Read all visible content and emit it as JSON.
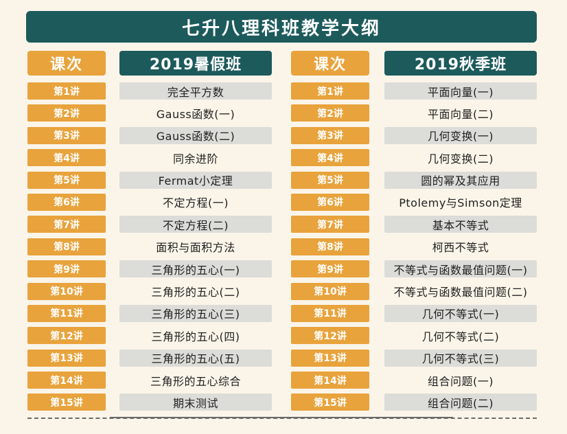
{
  "title": "七升八理科班教学大纲",
  "headers": {
    "lesson_left": "课次",
    "summer": "2019暑假班",
    "lesson_right": "课次",
    "autumn": "2019秋季班"
  },
  "lessons": [
    "第1讲",
    "第2讲",
    "第3讲",
    "第4讲",
    "第5讲",
    "第6讲",
    "第7讲",
    "第8讲",
    "第9讲",
    "第10讲",
    "第11讲",
    "第12讲",
    "第13讲",
    "第14讲",
    "第15讲"
  ],
  "summer_topics": [
    "完全平方数",
    "Gauss函数(一)",
    "Gauss函数(二)",
    "同余进阶",
    "Fermat小定理",
    "不定方程(一)",
    "不定方程(二)",
    "面积与面积方法",
    "三角形的五心(一)",
    "三角形的五心(二)",
    "三角形的五心(三)",
    "三角形的五心(四)",
    "三角形的五心(五)",
    "三角形的五心综合",
    "期末测试"
  ],
  "autumn_topics": [
    "平面向量(一)",
    "平面向量(二)",
    "几何变换(一)",
    "几何变换(二)",
    "圆的幂及其应用",
    "Ptolemy与Simson定理",
    "基本不等式",
    "柯西不等式",
    "不等式与函数最值问题(一)",
    "不等式与函数最值问题(二)",
    "几何不等式(一)",
    "几何不等式(二)",
    "几何不等式(三)",
    "组合问题(一)",
    "组合问题(二)"
  ],
  "colors": {
    "teal": "#1d5a5c",
    "orange": "#e8a33c",
    "gray_band": "#dcdcd8",
    "background": "#fbf5e9"
  }
}
